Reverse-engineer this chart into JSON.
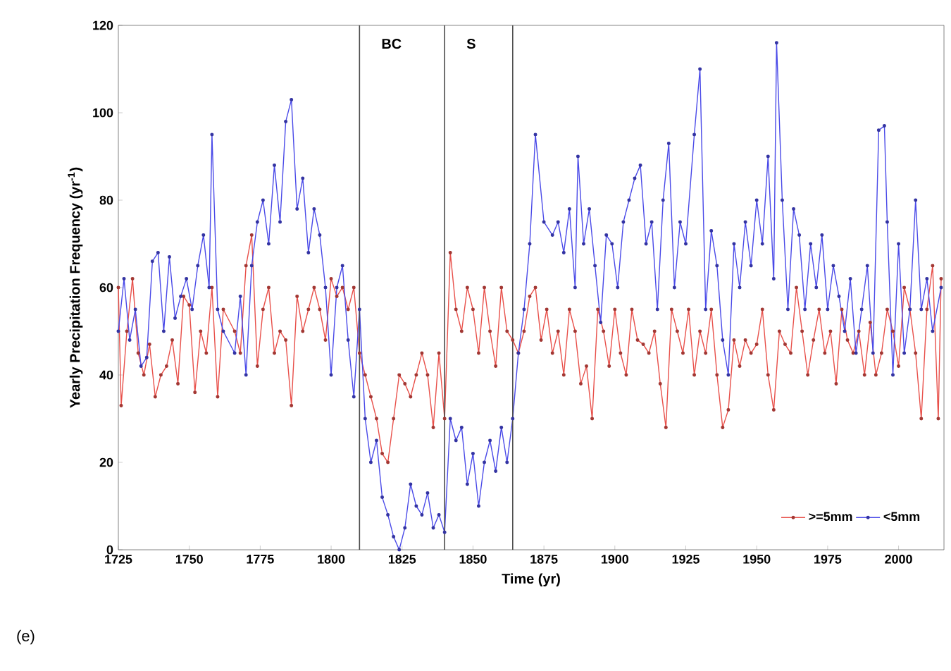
{
  "chart_data": {
    "type": "line",
    "xlabel": "Time (yr)",
    "ylabel": "Yearly Precipitation Frequency (yr$^{-1}$)",
    "xlim": [
      1725,
      2016
    ],
    "xticks": [
      1725,
      1750,
      1775,
      1800,
      1825,
      1850,
      1875,
      1900,
      1925,
      1950,
      1975,
      2000
    ],
    "ylim": [
      0,
      120
    ],
    "yticks": [
      0,
      20,
      40,
      60,
      80,
      100,
      120
    ],
    "marker": "circle",
    "legend": "bottom right",
    "ref_lines": [
      {
        "axis": "x",
        "value": 1810,
        "label": "BC"
      },
      {
        "axis": "x",
        "value": 1840,
        "label": "S"
      },
      {
        "axis": "x",
        "value": 1864,
        "label": null
      }
    ],
    "annotations": [
      "(e)"
    ],
    "series": [
      {
        "name": ">=5mm",
        "color": "#e8504a",
        "x": [
          1725,
          1726,
          1728,
          1730,
          1732,
          1734,
          1736,
          1738,
          1740,
          1742,
          1744,
          1746,
          1748,
          1750,
          1752,
          1754,
          1756,
          1758,
          1760,
          1762,
          1766,
          1768,
          1770,
          1772,
          1774,
          1776,
          1778,
          1780,
          1782,
          1784,
          1786,
          1788,
          1790,
          1792,
          1794,
          1796,
          1798,
          1800,
          1802,
          1804,
          1806,
          1808,
          1810,
          1812,
          1814,
          1816,
          1818,
          1820,
          1822,
          1824,
          1826,
          1828,
          1830,
          1832,
          1834,
          1836,
          1838,
          1840,
          1842,
          1844,
          1846,
          1848,
          1850,
          1852,
          1854,
          1856,
          1858,
          1860,
          1862,
          1864,
          1866,
          1868,
          1870,
          1872,
          1874,
          1876,
          1878,
          1880,
          1882,
          1884,
          1886,
          1888,
          1890,
          1892,
          1894,
          1896,
          1898,
          1900,
          1902,
          1904,
          1906,
          1908,
          1910,
          1912,
          1914,
          1916,
          1918,
          1920,
          1922,
          1924,
          1926,
          1928,
          1930,
          1932,
          1934,
          1936,
          1938,
          1940,
          1942,
          1944,
          1946,
          1948,
          1950,
          1952,
          1954,
          1956,
          1958,
          1960,
          1962,
          1964,
          1966,
          1968,
          1970,
          1972,
          1974,
          1976,
          1978,
          1980,
          1982,
          1984,
          1986,
          1988,
          1990,
          1992,
          1994,
          1996,
          1998,
          2000,
          2002,
          2004,
          2006,
          2008,
          2010,
          2012,
          2014,
          2015
        ],
        "values": [
          60,
          33,
          50,
          62,
          45,
          40,
          47,
          35,
          40,
          42,
          48,
          38,
          58,
          56,
          36,
          50,
          45,
          60,
          35,
          55,
          50,
          45,
          65,
          72,
          42,
          55,
          60,
          45,
          50,
          48,
          33,
          58,
          50,
          55,
          60,
          55,
          48,
          62,
          58,
          60,
          55,
          60,
          45,
          40,
          35,
          30,
          22,
          20,
          30,
          40,
          38,
          35,
          40,
          45,
          40,
          28,
          45,
          30,
          68,
          55,
          50,
          60,
          55,
          45,
          60,
          50,
          42,
          60,
          50,
          48,
          45,
          50,
          58,
          60,
          48,
          55,
          45,
          50,
          40,
          55,
          50,
          38,
          42,
          30,
          55,
          50,
          42,
          55,
          45,
          40,
          55,
          48,
          47,
          45,
          50,
          38,
          28,
          55,
          50,
          45,
          55,
          40,
          50,
          45,
          55,
          40,
          28,
          32,
          48,
          42,
          48,
          45,
          47,
          55,
          40,
          32,
          50,
          47,
          45,
          60,
          50,
          40,
          48,
          55,
          45,
          50,
          38,
          55,
          48,
          45,
          50,
          40,
          52,
          40,
          45,
          55,
          50,
          42,
          60,
          55,
          45,
          30,
          55,
          65,
          30,
          62
        ]
      },
      {
        "name": "<5mm",
        "color": "#4a4ae8",
        "x": [
          1725,
          1727,
          1729,
          1731,
          1733,
          1735,
          1737,
          1739,
          1741,
          1743,
          1745,
          1747,
          1749,
          1751,
          1753,
          1755,
          1757,
          1758,
          1760,
          1762,
          1766,
          1768,
          1770,
          1772,
          1774,
          1776,
          1778,
          1780,
          1782,
          1784,
          1786,
          1788,
          1790,
          1792,
          1794,
          1796,
          1798,
          1800,
          1802,
          1804,
          1806,
          1808,
          1810,
          1812,
          1814,
          1816,
          1818,
          1820,
          1822,
          1824,
          1826,
          1828,
          1830,
          1832,
          1834,
          1836,
          1838,
          1840,
          1842,
          1844,
          1846,
          1848,
          1850,
          1852,
          1854,
          1856,
          1858,
          1860,
          1862,
          1864,
          1866,
          1868,
          1870,
          1872,
          1875,
          1878,
          1880,
          1882,
          1884,
          1886,
          1887,
          1889,
          1891,
          1893,
          1895,
          1897,
          1899,
          1901,
          1903,
          1905,
          1907,
          1909,
          1911,
          1913,
          1915,
          1917,
          1919,
          1921,
          1923,
          1925,
          1928,
          1930,
          1932,
          1934,
          1936,
          1938,
          1940,
          1942,
          1944,
          1946,
          1948,
          1950,
          1952,
          1954,
          1956,
          1957,
          1959,
          1961,
          1963,
          1965,
          1967,
          1969,
          1971,
          1973,
          1975,
          1977,
          1979,
          1981,
          1983,
          1985,
          1987,
          1989,
          1991,
          1993,
          1995,
          1996,
          1998,
          2000,
          2002,
          2004,
          2006,
          2008,
          2010,
          2012,
          2015
        ],
        "values": [
          50,
          62,
          48,
          55,
          42,
          44,
          66,
          68,
          50,
          67,
          53,
          58,
          62,
          55,
          65,
          72,
          60,
          95,
          55,
          50,
          45,
          58,
          40,
          65,
          75,
          80,
          70,
          88,
          75,
          98,
          103,
          78,
          85,
          68,
          78,
          72,
          60,
          40,
          60,
          65,
          48,
          35,
          55,
          30,
          20,
          25,
          12,
          8,
          3,
          0,
          5,
          15,
          10,
          8,
          13,
          5,
          8,
          4,
          30,
          25,
          28,
          15,
          22,
          10,
          20,
          25,
          18,
          28,
          20,
          30,
          45,
          55,
          70,
          95,
          75,
          72,
          75,
          68,
          78,
          60,
          90,
          70,
          78,
          65,
          52,
          72,
          70,
          60,
          75,
          80,
          85,
          88,
          70,
          75,
          55,
          80,
          93,
          60,
          75,
          70,
          95,
          110,
          55,
          73,
          65,
          48,
          40,
          70,
          60,
          75,
          65,
          80,
          70,
          90,
          62,
          116,
          80,
          55,
          78,
          72,
          55,
          70,
          60,
          72,
          55,
          65,
          58,
          50,
          62,
          45,
          55,
          65,
          45,
          96,
          97,
          75,
          40,
          70,
          45,
          55,
          80,
          55,
          62,
          50,
          60
        ]
      }
    ]
  }
}
